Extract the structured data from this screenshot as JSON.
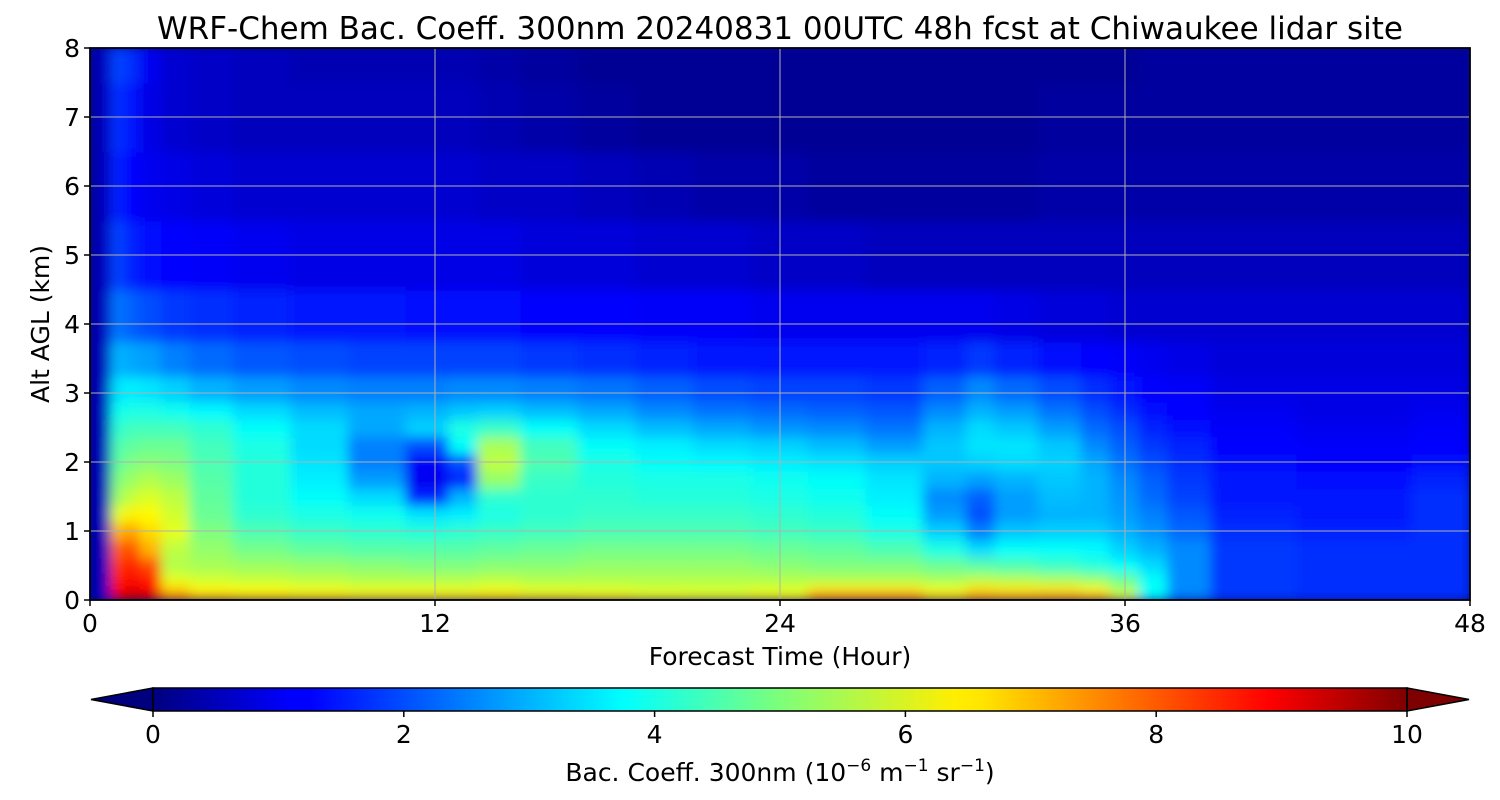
{
  "chart_data": {
    "type": "heatmap",
    "title": "WRF-Chem Bac. Coeff. 300nm  20240831 00UTC 48h fcst at Chiwaukee lidar site",
    "xlabel": "Forecast Time (Hour)",
    "ylabel": "Alt AGL (km)",
    "xlim": [
      0,
      48
    ],
    "ylim": [
      0,
      8
    ],
    "x_ticks": [
      "0",
      "12",
      "24",
      "36",
      "48"
    ],
    "y_ticks": [
      "0",
      "1",
      "2",
      "3",
      "4",
      "5",
      "6",
      "7",
      "8"
    ],
    "grid": true,
    "colormap": "jet",
    "colorbar": {
      "orientation": "horizontal",
      "extend": "both",
      "range": [
        0,
        10
      ],
      "ticks": [
        "0",
        "2",
        "4",
        "6",
        "8",
        "10"
      ],
      "label_main": "Bac. Coeff. 300nm  (10",
      "label_exp1": "−6",
      "label_mid1": " m",
      "label_exp2": "−1",
      "label_mid2": " sr",
      "label_exp3": "−1",
      "label_end": ")"
    },
    "x": [
      0,
      0.5,
      1,
      1.5,
      2,
      3,
      4,
      6,
      8,
      10,
      12,
      13,
      14,
      16,
      18,
      20,
      22,
      24,
      26,
      28,
      30,
      31,
      32,
      34,
      35,
      36,
      37,
      38,
      40,
      44,
      48
    ],
    "y": [
      0,
      0.05,
      0.15,
      0.3,
      0.5,
      0.75,
      1.0,
      1.25,
      1.5,
      1.75,
      2.0,
      2.25,
      2.5,
      2.75,
      3.0,
      3.5,
      4.0,
      5.0,
      6.0,
      7.0,
      8.0
    ],
    "values": [
      [
        0.3,
        0.6,
        9.0,
        9.5,
        9.5,
        8.0,
        7.2,
        7.1,
        7.0,
        7.0,
        7.0,
        7.0,
        7.0,
        7.0,
        6.8,
        6.6,
        6.5,
        6.7,
        7.8,
        7.8,
        7.0,
        7.5,
        7.3,
        7.4,
        7.3,
        6.2,
        3.8,
        2.5,
        1.8,
        1.7,
        1.7
      ],
      [
        0.3,
        0.6,
        9.0,
        9.3,
        9.2,
        7.5,
        7.0,
        6.8,
        6.7,
        6.6,
        6.6,
        6.6,
        6.7,
        6.5,
        6.4,
        6.2,
        6.1,
        6.3,
        7.6,
        7.6,
        6.8,
        7.3,
        7.2,
        7.3,
        7.2,
        6.0,
        3.8,
        2.5,
        1.8,
        1.7,
        1.7
      ],
      [
        0.3,
        0.6,
        8.8,
        9.0,
        8.8,
        6.8,
        6.3,
        6.2,
        6.1,
        6.0,
        6.0,
        6.0,
        6.1,
        5.9,
        5.9,
        5.8,
        5.8,
        5.9,
        6.5,
        6.5,
        6.1,
        6.6,
        6.5,
        6.5,
        6.3,
        5.4,
        3.8,
        2.6,
        1.8,
        1.7,
        1.7
      ],
      [
        0.3,
        0.6,
        8.5,
        8.8,
        8.5,
        6.0,
        5.8,
        5.7,
        5.6,
        5.5,
        5.5,
        5.5,
        5.6,
        5.5,
        5.5,
        5.5,
        5.5,
        5.5,
        5.5,
        5.5,
        5.4,
        5.6,
        5.5,
        5.4,
        5.2,
        4.8,
        3.8,
        2.6,
        1.8,
        1.7,
        1.7
      ],
      [
        0.3,
        0.6,
        8.2,
        8.5,
        8.0,
        5.5,
        5.4,
        5.3,
        5.2,
        5.1,
        5.0,
        5.0,
        5.1,
        5.1,
        5.2,
        5.2,
        5.2,
        5.1,
        5.0,
        5.0,
        4.8,
        4.6,
        4.5,
        4.3,
        4.1,
        3.8,
        3.4,
        2.6,
        1.8,
        1.7,
        1.7
      ],
      [
        0.3,
        0.6,
        7.8,
        8.0,
        7.0,
        5.6,
        5.2,
        4.9,
        4.7,
        4.6,
        4.6,
        4.6,
        4.7,
        4.8,
        4.9,
        4.9,
        4.9,
        4.8,
        4.7,
        4.5,
        4.0,
        3.4,
        3.8,
        3.8,
        3.7,
        3.3,
        3.0,
        2.6,
        1.8,
        1.7,
        1.7
      ],
      [
        0.3,
        0.6,
        7.0,
        7.2,
        6.6,
        6.0,
        5.0,
        4.5,
        4.3,
        4.2,
        4.1,
        4.2,
        4.3,
        4.4,
        4.5,
        4.5,
        4.5,
        4.4,
        4.3,
        4.0,
        3.3,
        2.5,
        3.2,
        3.3,
        3.3,
        3.0,
        2.7,
        2.3,
        1.7,
        1.6,
        1.7
      ],
      [
        0.3,
        0.6,
        6.0,
        6.4,
        6.3,
        5.8,
        4.8,
        4.2,
        4.0,
        3.9,
        3.5,
        3.6,
        4.0,
        4.2,
        4.3,
        4.3,
        4.3,
        4.2,
        4.1,
        3.8,
        2.8,
        2.0,
        2.8,
        3.0,
        3.0,
        2.8,
        2.5,
        2.1,
        1.6,
        1.5,
        1.7
      ],
      [
        0.3,
        0.6,
        5.3,
        5.7,
        5.9,
        5.6,
        4.7,
        4.1,
        3.8,
        3.4,
        1.6,
        3.0,
        4.2,
        4.2,
        4.2,
        4.1,
        4.1,
        4.0,
        3.9,
        3.6,
        2.6,
        2.2,
        2.8,
        3.1,
        3.0,
        2.7,
        2.3,
        1.9,
        1.5,
        1.5,
        1.7
      ],
      [
        0.3,
        0.6,
        5.0,
        5.3,
        5.5,
        5.3,
        4.6,
        4.1,
        3.6,
        2.8,
        1.1,
        1.6,
        5.2,
        4.3,
        4.1,
        4.0,
        4.0,
        3.9,
        3.8,
        3.5,
        3.0,
        2.8,
        3.0,
        3.2,
        3.0,
        2.6,
        2.2,
        1.8,
        1.5,
        1.4,
        1.6
      ],
      [
        0.3,
        0.6,
        4.7,
        5.0,
        5.1,
        5.0,
        4.5,
        4.1,
        3.5,
        2.5,
        1.2,
        2.0,
        5.6,
        4.5,
        4.0,
        3.8,
        3.7,
        3.6,
        3.5,
        3.3,
        3.2,
        3.3,
        3.4,
        3.3,
        2.9,
        2.4,
        2.0,
        1.7,
        1.4,
        1.3,
        1.4
      ],
      [
        0.3,
        0.6,
        4.5,
        4.7,
        4.8,
        4.8,
        4.4,
        4.0,
        3.4,
        2.5,
        2.0,
        3.8,
        5.4,
        4.4,
        3.8,
        3.6,
        3.4,
        3.3,
        3.1,
        2.8,
        3.2,
        3.5,
        3.5,
        3.2,
        2.6,
        2.2,
        1.8,
        1.6,
        1.3,
        1.2,
        1.3
      ],
      [
        0.3,
        0.6,
        4.2,
        4.4,
        4.4,
        4.4,
        4.2,
        3.8,
        3.4,
        2.9,
        3.3,
        4.0,
        4.3,
        3.8,
        3.4,
        3.1,
        2.9,
        2.7,
        2.6,
        2.4,
        3.0,
        3.4,
        3.2,
        2.8,
        2.3,
        2.0,
        1.6,
        1.4,
        1.2,
        1.1,
        1.2
      ],
      [
        0.3,
        0.6,
        3.9,
        4.0,
        4.0,
        3.9,
        3.7,
        3.4,
        3.1,
        2.9,
        3.0,
        3.2,
        3.3,
        3.1,
        2.9,
        2.6,
        2.4,
        2.3,
        2.2,
        2.1,
        2.6,
        3.0,
        2.8,
        2.4,
        2.0,
        1.7,
        1.4,
        1.3,
        1.1,
        1.0,
        1.1
      ],
      [
        0.3,
        0.6,
        3.5,
        3.6,
        3.5,
        3.3,
        3.0,
        2.8,
        2.6,
        2.5,
        2.5,
        2.6,
        2.6,
        2.5,
        2.4,
        2.2,
        2.0,
        1.9,
        1.9,
        1.8,
        2.2,
        2.6,
        2.3,
        2.0,
        1.7,
        1.5,
        1.3,
        1.2,
        1.0,
        1.0,
        1.0
      ],
      [
        0.3,
        0.6,
        3.0,
        2.9,
        2.8,
        2.5,
        2.3,
        2.1,
        2.0,
        1.9,
        1.9,
        1.9,
        1.9,
        1.8,
        1.7,
        1.6,
        1.5,
        1.5,
        1.5,
        1.5,
        1.6,
        1.8,
        1.6,
        1.4,
        1.3,
        1.2,
        1.1,
        1.0,
        0.9,
        0.9,
        0.9
      ],
      [
        0.3,
        0.6,
        2.4,
        2.2,
        2.0,
        1.8,
        1.7,
        1.6,
        1.5,
        1.5,
        1.4,
        1.4,
        1.4,
        1.3,
        1.3,
        1.2,
        1.2,
        1.1,
        1.1,
        1.1,
        1.1,
        1.1,
        1.0,
        0.9,
        0.9,
        0.8,
        0.8,
        0.8,
        0.8,
        0.8,
        0.8
      ],
      [
        0.3,
        0.6,
        1.9,
        1.6,
        1.4,
        1.3,
        1.2,
        1.1,
        1.0,
        1.0,
        1.0,
        1.0,
        1.0,
        0.9,
        0.9,
        0.8,
        0.8,
        0.7,
        0.7,
        0.6,
        0.6,
        0.6,
        0.6,
        0.6,
        0.6,
        0.6,
        0.6,
        0.6,
        0.6,
        0.6,
        0.6
      ],
      [
        0.3,
        0.6,
        1.6,
        1.3,
        1.1,
        1.0,
        0.9,
        0.8,
        0.8,
        0.8,
        0.8,
        0.8,
        0.7,
        0.7,
        0.6,
        0.5,
        0.4,
        0.4,
        0.3,
        0.3,
        0.3,
        0.3,
        0.3,
        0.4,
        0.4,
        0.4,
        0.4,
        0.4,
        0.4,
        0.4,
        0.4
      ],
      [
        0.3,
        0.6,
        1.7,
        1.5,
        1.0,
        0.8,
        0.7,
        0.6,
        0.6,
        0.6,
        0.6,
        0.6,
        0.5,
        0.4,
        0.3,
        0.2,
        0.2,
        0.2,
        0.2,
        0.2,
        0.2,
        0.2,
        0.2,
        0.3,
        0.3,
        0.3,
        0.3,
        0.3,
        0.3,
        0.3,
        0.3
      ],
      [
        0.3,
        0.6,
        1.9,
        1.7,
        1.1,
        0.8,
        0.7,
        0.6,
        0.5,
        0.5,
        0.5,
        0.5,
        0.4,
        0.3,
        0.2,
        0.2,
        0.2,
        0.2,
        0.2,
        0.2,
        0.2,
        0.2,
        0.2,
        0.2,
        0.2,
        0.2,
        0.3,
        0.3,
        0.3,
        0.3,
        0.3
      ]
    ]
  }
}
